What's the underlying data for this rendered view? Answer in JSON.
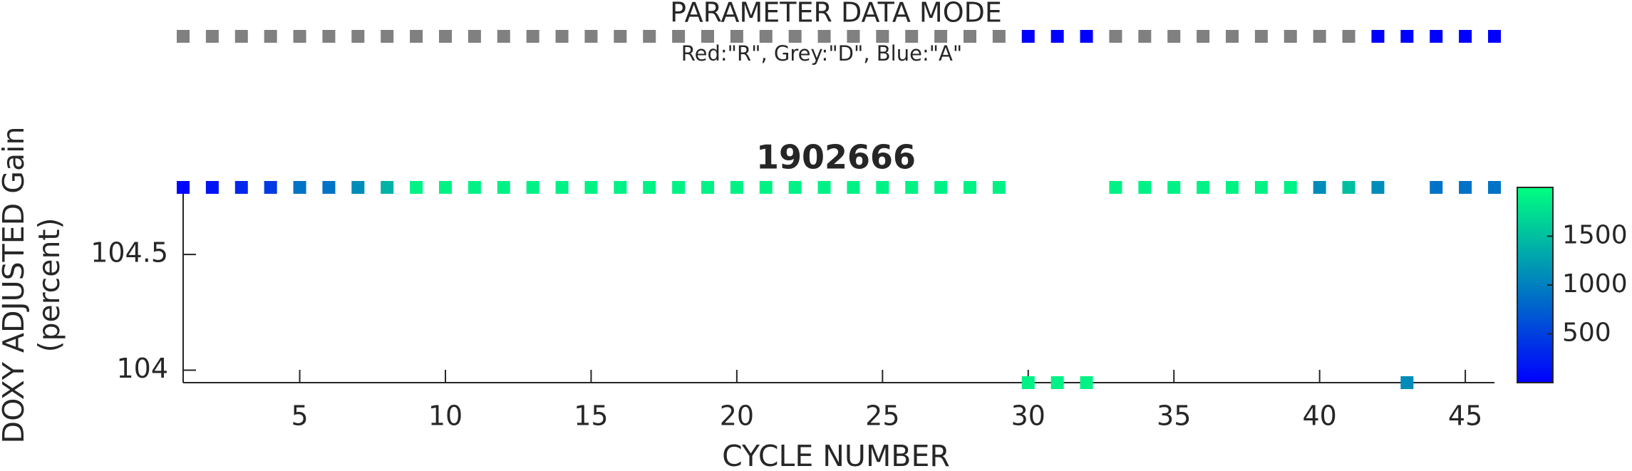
{
  "chart_data": [
    {
      "type": "mode_strip",
      "title": "PARAMETER DATA MODE",
      "subtitle": "Red:\"R\", Grey:\"D\", Blue:\"A\"",
      "x": [
        1,
        2,
        3,
        4,
        5,
        6,
        7,
        8,
        9,
        10,
        11,
        12,
        13,
        14,
        15,
        16,
        17,
        18,
        19,
        20,
        21,
        22,
        23,
        24,
        25,
        26,
        27,
        28,
        29,
        30,
        31,
        32,
        33,
        34,
        35,
        36,
        37,
        38,
        39,
        40,
        41,
        42,
        43,
        44,
        45,
        46
      ],
      "modes": [
        "D",
        "D",
        "D",
        "D",
        "D",
        "D",
        "D",
        "D",
        "D",
        "D",
        "D",
        "D",
        "D",
        "D",
        "D",
        "D",
        "D",
        "D",
        "D",
        "D",
        "D",
        "D",
        "D",
        "D",
        "D",
        "D",
        "D",
        "D",
        "D",
        "A",
        "A",
        "A",
        "D",
        "D",
        "D",
        "D",
        "D",
        "D",
        "D",
        "D",
        "D",
        "A",
        "A",
        "A",
        "A",
        "A"
      ],
      "colors": {
        "R": "#ff0000",
        "D": "#808080",
        "A": "#0000ff"
      }
    },
    {
      "type": "scatter",
      "title": "1902666",
      "xlabel": "CYCLE NUMBER",
      "ylabel": [
        "DOXY ADJUSTED Gain",
        "(percent)"
      ],
      "x": [
        1,
        2,
        3,
        4,
        5,
        6,
        7,
        8,
        9,
        10,
        11,
        12,
        13,
        14,
        15,
        16,
        17,
        18,
        19,
        20,
        21,
        22,
        23,
        24,
        25,
        26,
        27,
        28,
        29,
        30,
        31,
        32,
        33,
        34,
        35,
        36,
        37,
        38,
        39,
        40,
        41,
        42,
        43,
        44,
        45,
        46
      ],
      "y": [
        104.79,
        104.79,
        104.79,
        104.79,
        104.79,
        104.79,
        104.79,
        104.79,
        104.79,
        104.79,
        104.79,
        104.79,
        104.79,
        104.79,
        104.79,
        104.79,
        104.79,
        104.79,
        104.79,
        104.79,
        104.79,
        104.79,
        104.79,
        104.79,
        104.79,
        104.79,
        104.79,
        104.79,
        104.79,
        103.946,
        103.946,
        103.946,
        104.79,
        104.79,
        104.79,
        104.79,
        104.79,
        104.79,
        104.79,
        104.79,
        104.79,
        104.79,
        103.946,
        104.79,
        104.79,
        104.79
      ],
      "c": [
        50,
        150,
        300,
        450,
        900,
        900,
        1100,
        1400,
        1900,
        1900,
        1900,
        1900,
        1900,
        1900,
        1900,
        1900,
        1900,
        1900,
        1900,
        1900,
        1900,
        1900,
        1900,
        1900,
        1900,
        1900,
        1900,
        1900,
        1900,
        1900,
        1900,
        1900,
        1900,
        1900,
        1900,
        1900,
        1900,
        1900,
        1900,
        1100,
        1500,
        1100,
        1100,
        900,
        900,
        900
      ],
      "colormap": "winter",
      "clim": [
        0,
        2000
      ],
      "cticks": [
        500,
        1000,
        1500
      ],
      "xlim": [
        1,
        46
      ],
      "xticks": [
        5,
        10,
        15,
        20,
        25,
        30,
        35,
        40,
        45
      ],
      "ylim": [
        103.946,
        104.79
      ],
      "yticks": [
        104,
        104.5
      ]
    }
  ]
}
